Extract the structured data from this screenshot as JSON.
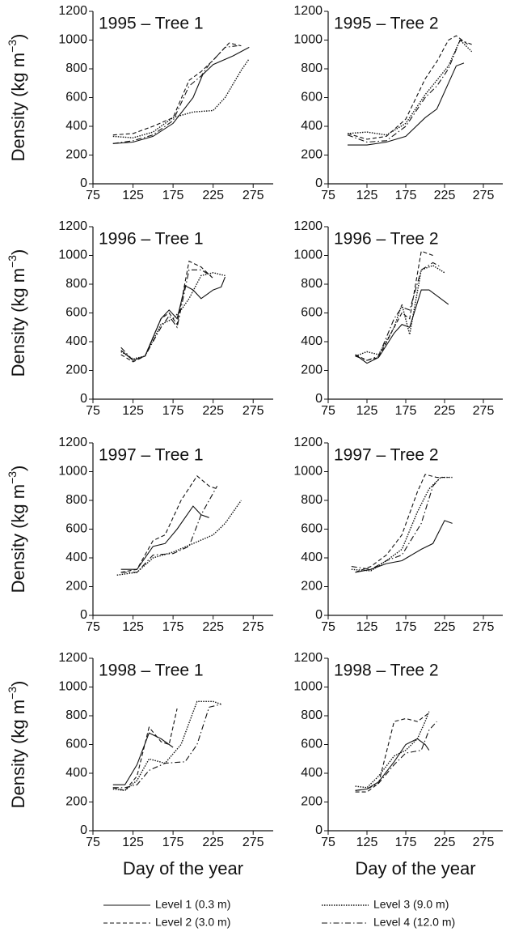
{
  "legend": [
    {
      "name": "Level 1 (0.3 m)",
      "style": "solid"
    },
    {
      "name": "Level 2 (3.0 m)",
      "style": "dashed"
    },
    {
      "name": "Level 3 (9.0 m)",
      "style": "dotted"
    },
    {
      "name": "Level 4 (12.0 m)",
      "style": "dashdot"
    }
  ],
  "chart_data": [
    {
      "type": "line",
      "title": "1995 – Tree 1",
      "ylabel": [
        "Density (kg m",
        "−3",
        ")"
      ],
      "xlim": [
        75,
        300
      ],
      "ylim": [
        0,
        1200
      ],
      "xticks": [
        75,
        125,
        175,
        225,
        275
      ],
      "yticks": [
        0,
        200,
        400,
        600,
        800,
        1000,
        1200
      ],
      "series": [
        {
          "style": "solid",
          "x": [
            100,
            125,
            150,
            175,
            200,
            212,
            225,
            250,
            270
          ],
          "values": [
            280,
            290,
            330,
            420,
            600,
            760,
            830,
            890,
            950
          ]
        },
        {
          "style": "dashed",
          "x": [
            100,
            125,
            150,
            175,
            195,
            210,
            225,
            245,
            260
          ],
          "values": [
            340,
            350,
            400,
            460,
            720,
            780,
            860,
            980,
            960
          ]
        },
        {
          "style": "dotted",
          "x": [
            100,
            125,
            150,
            175,
            200,
            225,
            240,
            260,
            270
          ],
          "values": [
            330,
            320,
            360,
            460,
            500,
            510,
            600,
            790,
            870
          ]
        },
        {
          "style": "dashdot",
          "x": [
            100,
            125,
            150,
            175,
            195,
            210,
            220,
            240,
            255
          ],
          "values": [
            280,
            300,
            340,
            440,
            680,
            750,
            830,
            950,
            960
          ]
        }
      ]
    },
    {
      "type": "line",
      "title": "1995 – Tree 2",
      "xlim": [
        75,
        300
      ],
      "ylim": [
        0,
        1200
      ],
      "xticks": [
        75,
        125,
        175,
        225,
        275
      ],
      "yticks": [
        0,
        200,
        400,
        600,
        800,
        1000,
        1200
      ],
      "series": [
        {
          "style": "solid",
          "x": [
            100,
            125,
            150,
            175,
            200,
            215,
            230,
            240,
            250
          ],
          "values": [
            270,
            270,
            290,
            330,
            460,
            520,
            700,
            820,
            840
          ]
        },
        {
          "style": "dashed",
          "x": [
            100,
            125,
            150,
            175,
            200,
            215,
            230,
            240,
            255
          ],
          "values": [
            350,
            310,
            330,
            450,
            730,
            850,
            1000,
            1030,
            970
          ]
        },
        {
          "style": "dotted",
          "x": [
            100,
            125,
            150,
            175,
            200,
            215,
            230,
            245,
            260
          ],
          "values": [
            350,
            360,
            340,
            420,
            620,
            720,
            820,
            1000,
            920
          ]
        },
        {
          "style": "dashdot",
          "x": [
            100,
            125,
            150,
            175,
            200,
            215,
            230,
            245,
            260
          ],
          "values": [
            340,
            290,
            300,
            400,
            600,
            680,
            800,
            1000,
            970
          ]
        }
      ]
    },
    {
      "type": "line",
      "title": "1996 – Tree 1",
      "ylabel": [
        "Density (kg m",
        "−3",
        ")"
      ],
      "xlim": [
        75,
        300
      ],
      "ylim": [
        0,
        1200
      ],
      "xticks": [
        75,
        125,
        175,
        225,
        275
      ],
      "yticks": [
        0,
        200,
        400,
        600,
        800,
        1000,
        1200
      ],
      "series": [
        {
          "style": "solid",
          "x": [
            110,
            125,
            140,
            160,
            170,
            180,
            190,
            200,
            210,
            225,
            235,
            240
          ],
          "values": [
            340,
            270,
            300,
            560,
            620,
            560,
            790,
            760,
            700,
            760,
            780,
            850
          ]
        },
        {
          "style": "dashed",
          "x": [
            110,
            125,
            140,
            160,
            170,
            180,
            195,
            210,
            225
          ],
          "values": [
            310,
            260,
            300,
            560,
            600,
            520,
            960,
            920,
            840
          ]
        },
        {
          "style": "dotted",
          "x": [
            110,
            125,
            140,
            160,
            175,
            185,
            195,
            210,
            225,
            240
          ],
          "values": [
            330,
            280,
            300,
            520,
            560,
            620,
            700,
            860,
            880,
            860
          ]
        },
        {
          "style": "dashdot",
          "x": [
            110,
            125,
            140,
            160,
            170,
            180,
            195,
            210,
            225
          ],
          "values": [
            360,
            270,
            300,
            500,
            580,
            500,
            900,
            900,
            850
          ]
        }
      ]
    },
    {
      "type": "line",
      "title": "1996 – Tree 2",
      "xlim": [
        75,
        300
      ],
      "ylim": [
        0,
        1200
      ],
      "xticks": [
        75,
        125,
        175,
        225,
        275
      ],
      "yticks": [
        0,
        200,
        400,
        600,
        800,
        1000,
        1200
      ],
      "series": [
        {
          "style": "solid",
          "x": [
            110,
            125,
            140,
            160,
            170,
            180,
            195,
            205,
            215,
            230
          ],
          "values": [
            310,
            250,
            290,
            460,
            520,
            500,
            760,
            760,
            720,
            660
          ]
        },
        {
          "style": "dashed",
          "x": [
            110,
            125,
            140,
            160,
            170,
            180,
            195,
            210
          ],
          "values": [
            310,
            270,
            290,
            500,
            600,
            560,
            1030,
            1000
          ]
        },
        {
          "style": "dotted",
          "x": [
            110,
            125,
            140,
            160,
            170,
            180,
            195,
            210,
            225
          ],
          "values": [
            300,
            330,
            310,
            500,
            660,
            450,
            900,
            930,
            880
          ]
        },
        {
          "style": "dashdot",
          "x": [
            110,
            125,
            140,
            160,
            170,
            180,
            195,
            210,
            220
          ],
          "values": [
            300,
            270,
            300,
            560,
            640,
            620,
            900,
            950,
            920
          ]
        }
      ]
    },
    {
      "type": "line",
      "title": "1997 – Tree 1",
      "ylabel": [
        "Density (kg m",
        "−3",
        ")"
      ],
      "xlim": [
        75,
        300
      ],
      "ylim": [
        0,
        1200
      ],
      "xticks": [
        75,
        125,
        175,
        225,
        275
      ],
      "yticks": [
        0,
        200,
        400,
        600,
        800,
        1000,
        1200
      ],
      "series": [
        {
          "style": "solid",
          "x": [
            110,
            130,
            150,
            165,
            180,
            200,
            210,
            220
          ],
          "values": [
            320,
            320,
            480,
            500,
            600,
            760,
            700,
            680
          ]
        },
        {
          "style": "dashed",
          "x": [
            110,
            130,
            150,
            165,
            185,
            205,
            220,
            230
          ],
          "values": [
            300,
            320,
            520,
            560,
            800,
            970,
            900,
            880
          ]
        },
        {
          "style": "dotted",
          "x": [
            105,
            130,
            150,
            175,
            200,
            225,
            240,
            260
          ],
          "values": [
            280,
            300,
            400,
            440,
            500,
            560,
            640,
            800
          ]
        },
        {
          "style": "dashdot",
          "x": [
            110,
            130,
            150,
            175,
            195,
            210,
            230
          ],
          "values": [
            300,
            300,
            420,
            430,
            480,
            700,
            900
          ]
        }
      ]
    },
    {
      "type": "line",
      "title": "1997 – Tree 2",
      "xlim": [
        75,
        300
      ],
      "ylim": [
        0,
        1200
      ],
      "xticks": [
        75,
        125,
        175,
        225,
        275
      ],
      "yticks": [
        0,
        200,
        400,
        600,
        800,
        1000,
        1200
      ],
      "series": [
        {
          "style": "solid",
          "x": [
            110,
            130,
            150,
            170,
            195,
            210,
            225,
            235
          ],
          "values": [
            300,
            320,
            360,
            380,
            460,
            500,
            660,
            640
          ]
        },
        {
          "style": "dashed",
          "x": [
            110,
            130,
            150,
            170,
            190,
            200,
            215,
            230
          ],
          "values": [
            300,
            340,
            420,
            560,
            860,
            980,
            960,
            960
          ]
        },
        {
          "style": "dotted",
          "x": [
            105,
            130,
            150,
            170,
            190,
            205,
            220,
            235
          ],
          "values": [
            320,
            310,
            380,
            460,
            720,
            880,
            960,
            960
          ]
        },
        {
          "style": "dashdot",
          "x": [
            105,
            130,
            150,
            170,
            195,
            210,
            220
          ],
          "values": [
            340,
            320,
            380,
            420,
            640,
            900,
            960
          ]
        }
      ]
    },
    {
      "type": "line",
      "title": "1998 – Tree 1",
      "ylabel": [
        "Density (kg m",
        "−3",
        ")"
      ],
      "xlabel": "Day of the year",
      "xlim": [
        75,
        300
      ],
      "ylim": [
        0,
        1200
      ],
      "xticks": [
        75,
        125,
        175,
        225,
        275
      ],
      "yticks": [
        0,
        200,
        400,
        600,
        800,
        1000,
        1200
      ],
      "series": [
        {
          "style": "solid",
          "x": [
            100,
            115,
            130,
            145,
            160,
            175
          ],
          "values": [
            320,
            320,
            460,
            680,
            640,
            580
          ]
        },
        {
          "style": "dashed",
          "x": [
            100,
            115,
            130,
            145,
            160,
            170,
            180
          ],
          "values": [
            300,
            280,
            380,
            720,
            620,
            600,
            850
          ]
        },
        {
          "style": "dotted",
          "x": [
            100,
            115,
            130,
            145,
            165,
            185,
            205,
            225,
            235
          ],
          "values": [
            290,
            280,
            350,
            500,
            470,
            600,
            900,
            900,
            880
          ]
        },
        {
          "style": "dashdot",
          "x": [
            100,
            115,
            130,
            145,
            165,
            190,
            205,
            220,
            235
          ],
          "values": [
            300,
            300,
            320,
            420,
            470,
            480,
            600,
            860,
            880
          ]
        }
      ]
    },
    {
      "type": "line",
      "title": "1998 – Tree 2",
      "xlabel": "Day of the year",
      "xlim": [
        75,
        300
      ],
      "ylim": [
        0,
        1200
      ],
      "xticks": [
        75,
        125,
        175,
        225,
        275
      ],
      "yticks": [
        0,
        200,
        400,
        600,
        800,
        1000,
        1200
      ],
      "series": [
        {
          "style": "solid",
          "x": [
            110,
            125,
            140,
            160,
            175,
            190,
            200,
            205
          ],
          "values": [
            280,
            290,
            340,
            480,
            600,
            640,
            600,
            560
          ]
        },
        {
          "style": "dashed",
          "x": [
            110,
            125,
            140,
            160,
            175,
            190,
            205
          ],
          "values": [
            270,
            270,
            330,
            760,
            780,
            760,
            820
          ]
        },
        {
          "style": "dotted",
          "x": [
            110,
            125,
            140,
            160,
            175,
            190,
            200,
            205
          ],
          "values": [
            310,
            300,
            380,
            520,
            560,
            640,
            760,
            830
          ]
        },
        {
          "style": "dashdot",
          "x": [
            110,
            125,
            140,
            160,
            175,
            195,
            205,
            215
          ],
          "values": [
            280,
            290,
            330,
            460,
            540,
            560,
            700,
            760
          ]
        }
      ]
    }
  ]
}
